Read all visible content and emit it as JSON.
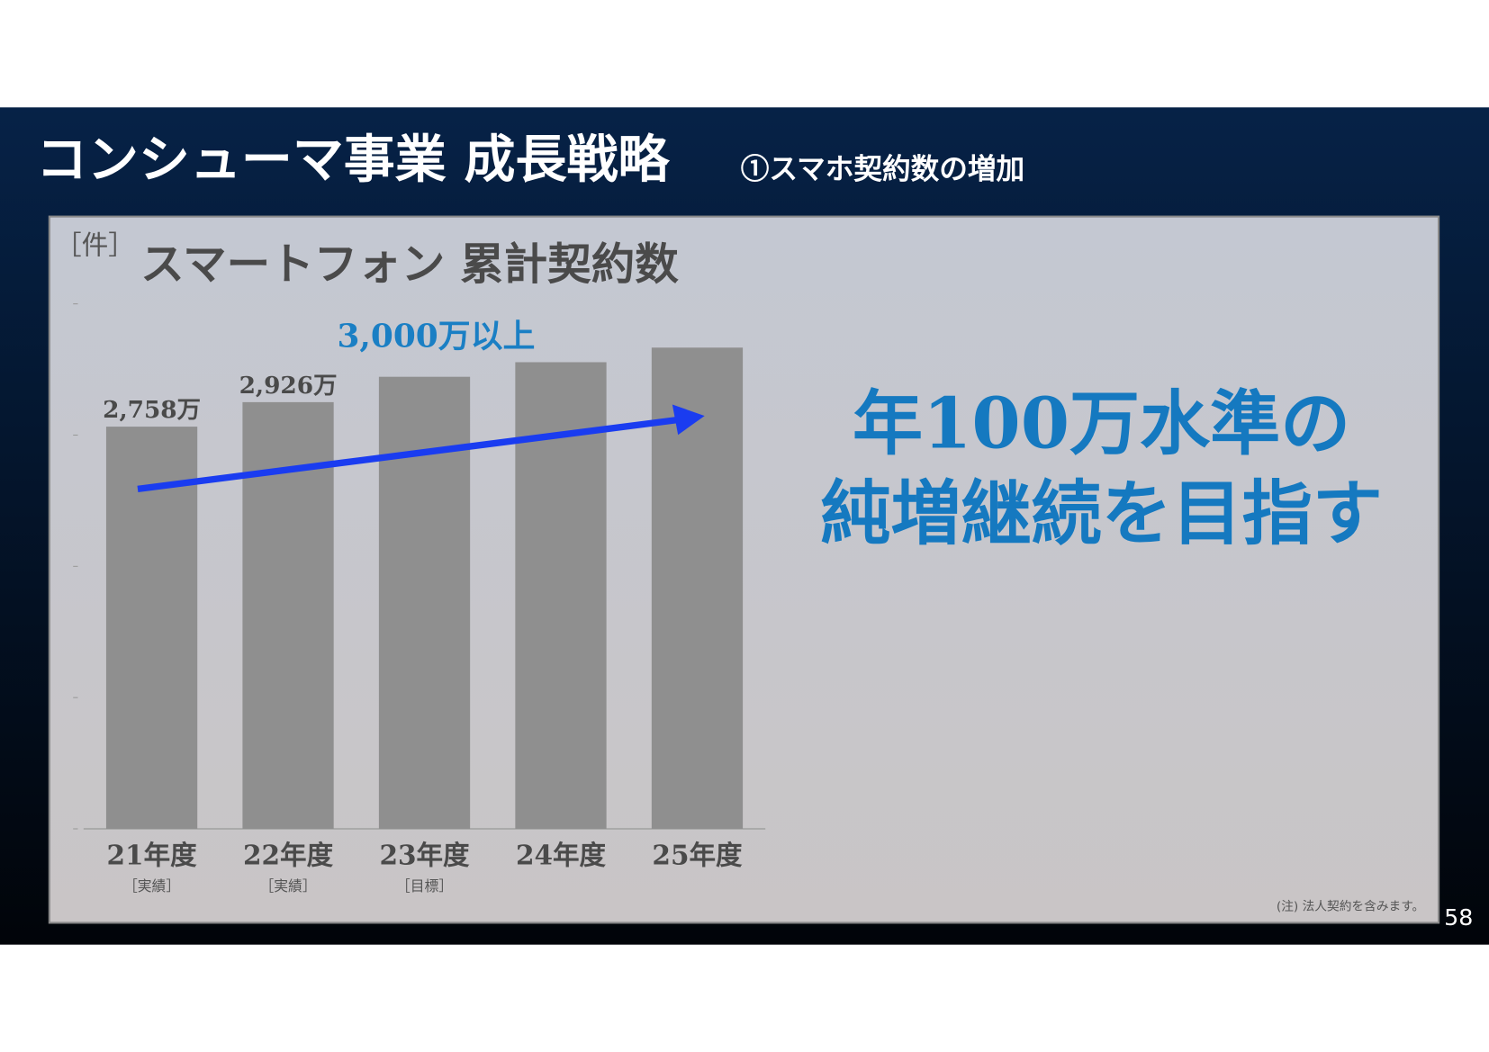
{
  "title": "コンシューマ事業 成長戦略",
  "subtitle": "①スマホ契約数の増加",
  "chart_data": {
    "type": "bar",
    "title": "スマートフォン 累計契約数",
    "unit_label": "［件］",
    "categories": [
      "21年度",
      "22年度",
      "23年度",
      "24年度",
      "25年度"
    ],
    "category_notes": [
      "［実績］",
      "［実績］",
      "［目標］",
      null,
      null
    ],
    "values": [
      2758,
      2926,
      3100,
      3200,
      3300
    ],
    "value_labels": [
      "2,758万",
      "2,926万",
      null,
      null,
      null
    ],
    "annotation": "3,000万以上",
    "color": "#8f8f8f",
    "ylim": [
      0,
      3600
    ],
    "yticks": [
      0,
      900,
      1800,
      2700,
      3600
    ]
  },
  "message": [
    "年100万水準の",
    "純増継続を目指す"
  ],
  "note": "(注) 法人契約を含みます。",
  "page_number": "58"
}
